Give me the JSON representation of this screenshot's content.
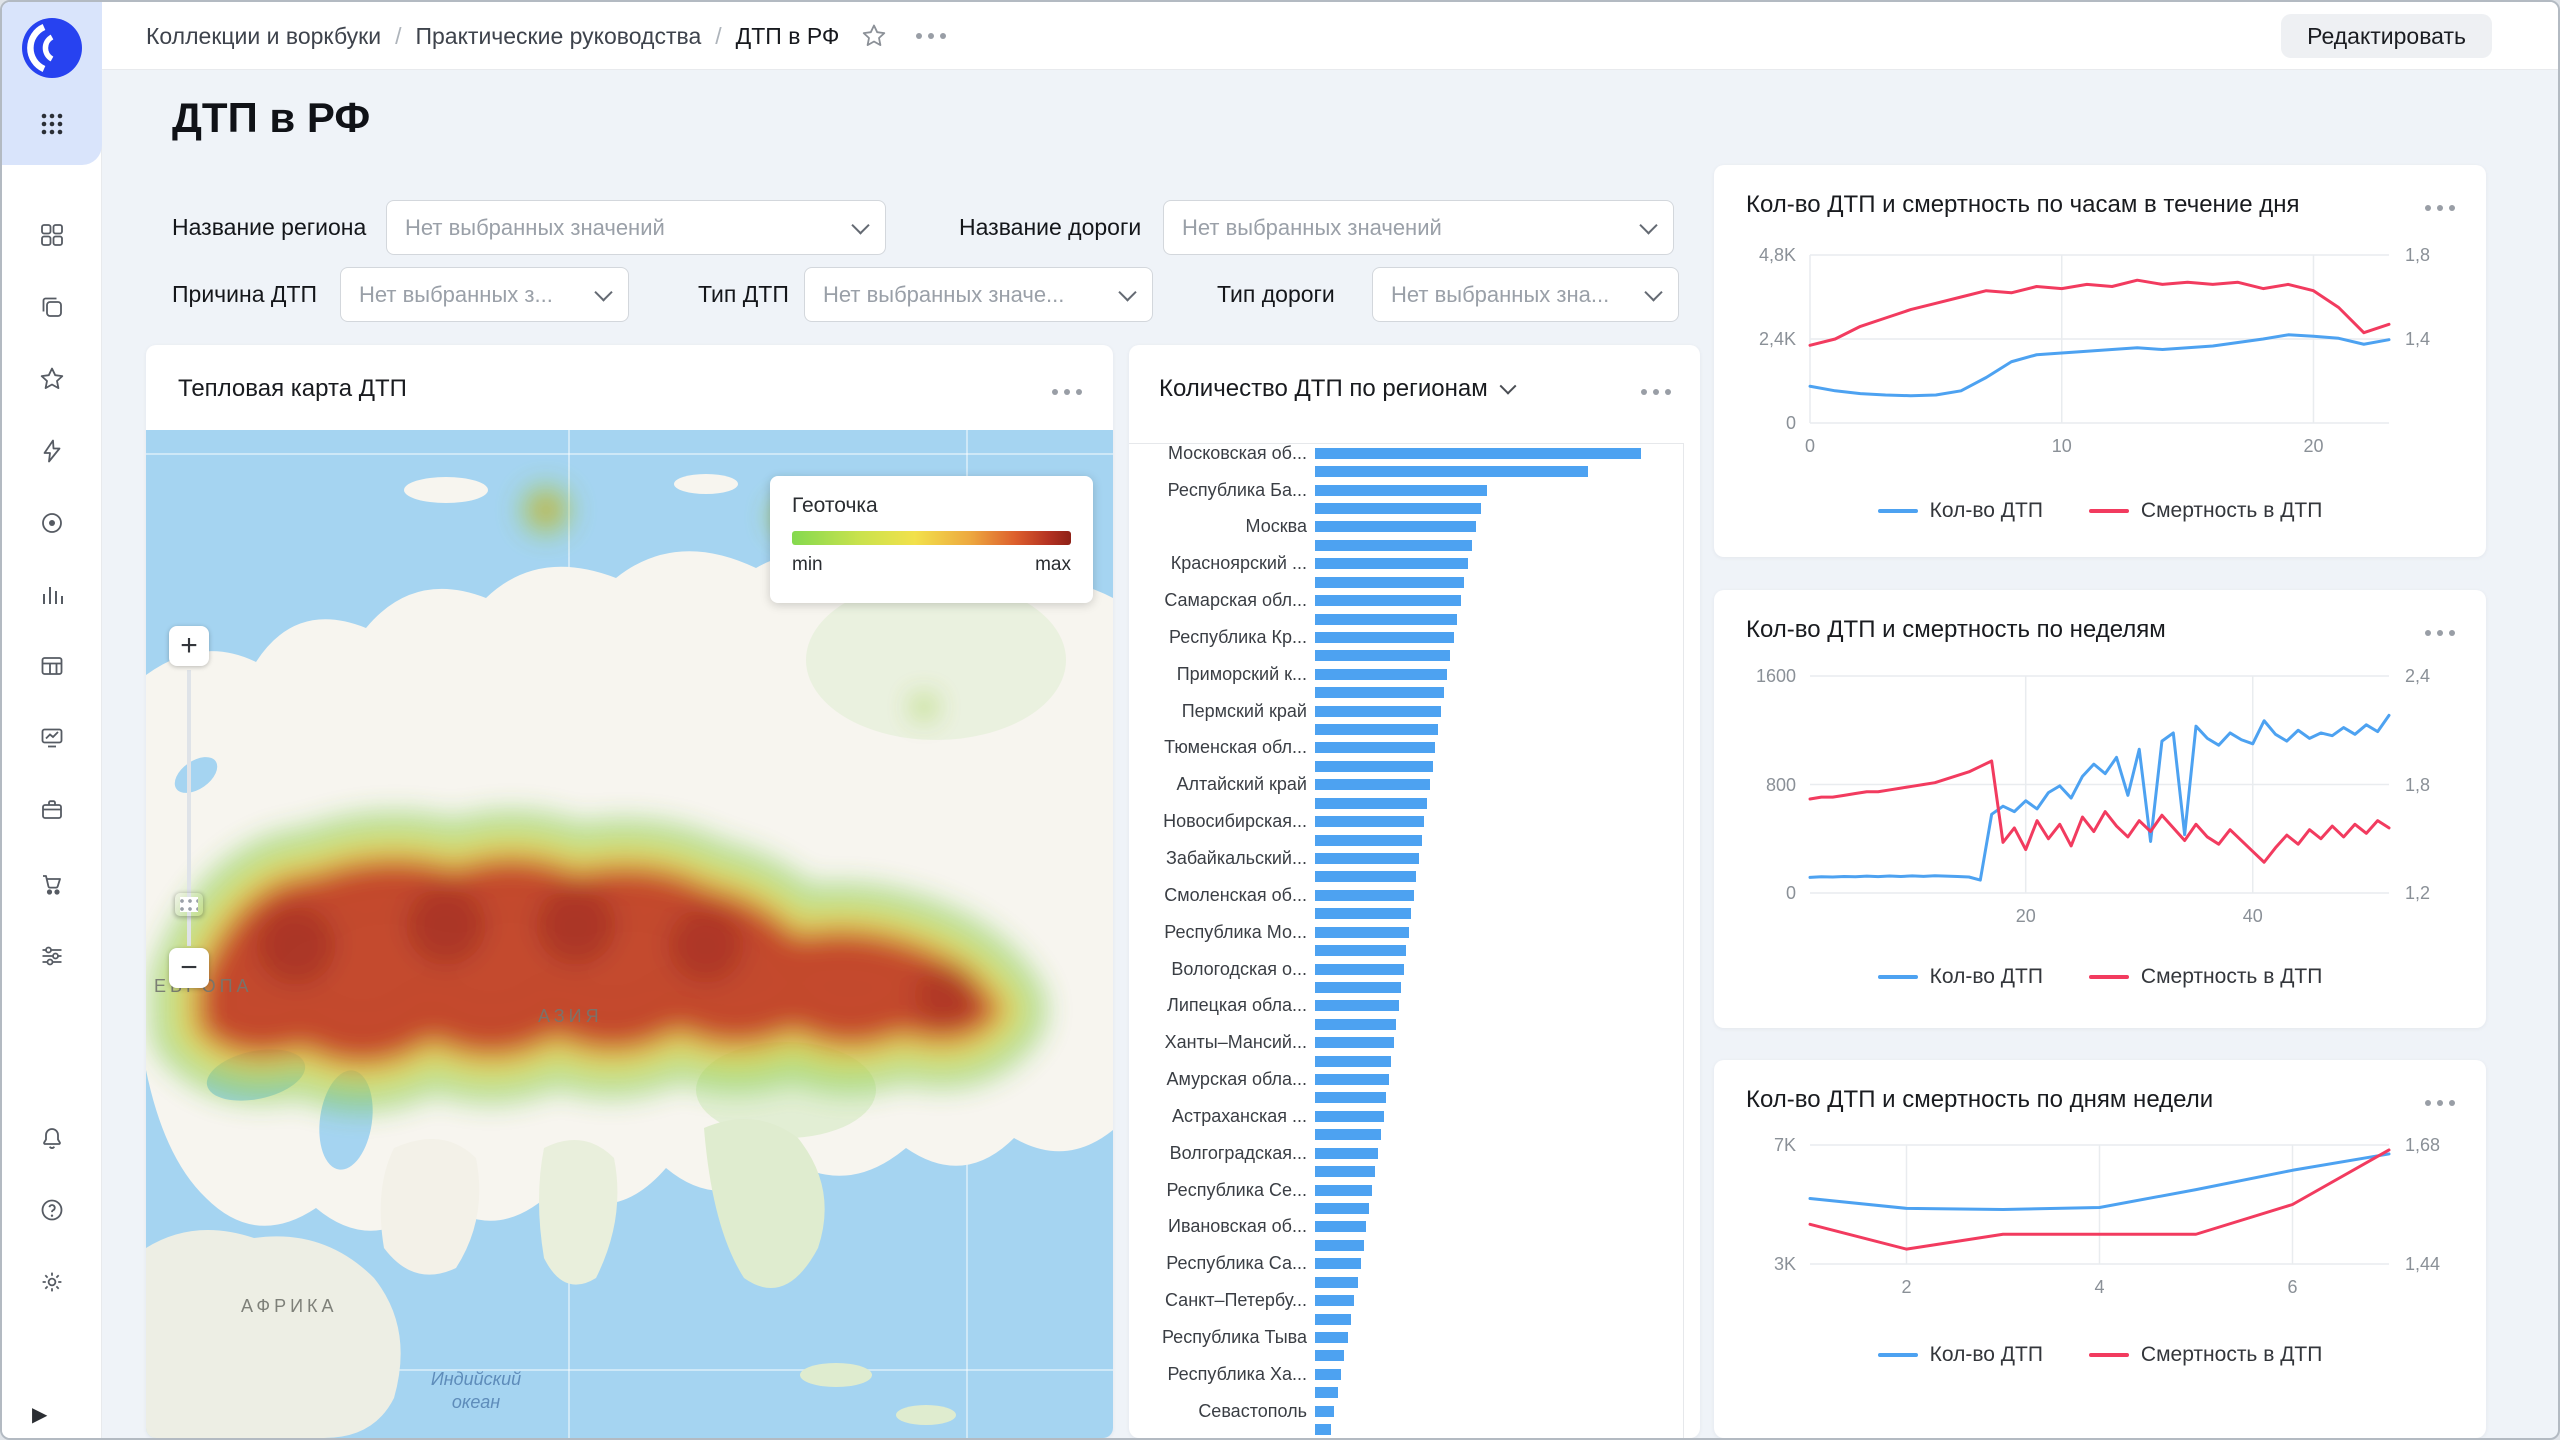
{
  "colors": {
    "blue": "#4DA2F1",
    "red": "#F23B5F"
  },
  "header": {
    "breadcrumbs": [
      "Коллекции и воркбуки",
      "Практические руководства",
      "ДТП в РФ"
    ],
    "edit_button": "Редактировать"
  },
  "page_title": "ДТП в РФ",
  "filters": {
    "region": {
      "label": "Название региона",
      "placeholder": "Нет выбранных значений"
    },
    "road": {
      "label": "Название дороги",
      "placeholder": "Нет выбранных значений"
    },
    "cause": {
      "label": "Причина ДТП",
      "placeholder": "Нет выбранных з..."
    },
    "dtp_type": {
      "label": "Тип ДТП",
      "placeholder": "Нет выбранных значе..."
    },
    "road_type": {
      "label": "Тип дороги",
      "placeholder": "Нет выбранных зна..."
    }
  },
  "heatmap_card": {
    "title": "Тепловая карта ДТП",
    "legend_title": "Геоточка",
    "legend_min": "min",
    "legend_max": "max",
    "zoom_in": "+",
    "zoom_out": "−",
    "labels": {
      "europe": "ЕВРОПА",
      "asia": "АЗИЯ",
      "africa": "АФРИКА",
      "indian_ocean_1": "Индийский",
      "indian_ocean_2": "океан"
    }
  },
  "chart_data": [
    {
      "type": "bar",
      "orientation": "horizontal",
      "title": "Количество ДТП по регионам",
      "bar_color": "#4DA2F1",
      "scale_max": 4400,
      "categories": [
        "Московская об...",
        "",
        "Республика Ба...",
        "",
        "Москва",
        "",
        "Красноярский ...",
        "",
        "Самарская обл...",
        "",
        "Республика Кр...",
        "",
        "Приморский к...",
        "",
        "Пермский край",
        "",
        "Тюменская обл...",
        "",
        "Алтайский край",
        "",
        "Новосибирская...",
        "",
        "Забайкальский...",
        "",
        "Смоленская об...",
        "",
        "Республика Мо...",
        "",
        "Вологодская о...",
        "",
        "Липецкая обла...",
        "",
        "Ханты–Мансий...",
        "",
        "Амурская обла...",
        "",
        "Астраханская ...",
        "",
        "Волгоградская...",
        "",
        "Республика Се...",
        "",
        "Ивановская об...",
        "",
        "Республика Са...",
        "",
        "Санкт–Петербу...",
        "",
        "Республика Тыва",
        "",
        "Республика Ха...",
        "",
        "Севастополь",
        ""
      ],
      "values": [
        3900,
        3270,
        2060,
        1990,
        1930,
        1880,
        1830,
        1785,
        1740,
        1700,
        1660,
        1620,
        1580,
        1545,
        1510,
        1475,
        1440,
        1405,
        1370,
        1340,
        1305,
        1275,
        1240,
        1210,
        1180,
        1150,
        1120,
        1090,
        1060,
        1030,
        1000,
        970,
        940,
        910,
        880,
        850,
        820,
        790,
        755,
        720,
        685,
        650,
        615,
        580,
        545,
        510,
        470,
        430,
        390,
        350,
        310,
        270,
        230,
        190
      ]
    },
    {
      "type": "line",
      "title": "Кол-во ДТП и смертность по часам в течение дня",
      "x_min": 0,
      "x_max": 23,
      "x_step": 1,
      "x_ticks": [
        {
          "value": 0,
          "label": "0"
        },
        {
          "value": 10,
          "label": "10"
        },
        {
          "value": 20,
          "label": "20"
        }
      ],
      "left_axis": {
        "min": 0,
        "max": 4800,
        "ticks": [
          {
            "value": 0,
            "label": "0"
          },
          {
            "value": 2400,
            "label": "2,4K"
          },
          {
            "value": 4800,
            "label": "4,8K"
          }
        ]
      },
      "right_axis": {
        "min": 1.0,
        "max": 1.8,
        "ticks": [
          {
            "value": 1.4,
            "label": "1,4"
          },
          {
            "value": 1.8,
            "label": "1,8"
          }
        ]
      },
      "series": [
        {
          "name": "Кол-во ДТП",
          "color": "#4DA2F1",
          "axis": "left",
          "values": [
            1050,
            920,
            840,
            800,
            780,
            800,
            920,
            1300,
            1750,
            1950,
            2000,
            2050,
            2100,
            2150,
            2100,
            2150,
            2200,
            2300,
            2400,
            2520,
            2480,
            2420,
            2250,
            2380
          ]
        },
        {
          "name": "Смертность в ДТП",
          "color": "#F23B5F",
          "axis": "right",
          "values": [
            1.37,
            1.4,
            1.46,
            1.5,
            1.54,
            1.57,
            1.6,
            1.63,
            1.62,
            1.65,
            1.64,
            1.66,
            1.65,
            1.68,
            1.66,
            1.67,
            1.66,
            1.67,
            1.64,
            1.66,
            1.63,
            1.55,
            1.43,
            1.47
          ]
        }
      ]
    },
    {
      "type": "line",
      "title": "Кол-во ДТП и смертность по неделям",
      "x_min": 1,
      "x_max": 52,
      "x_step": 1,
      "x_ticks": [
        {
          "value": 20,
          "label": "20"
        },
        {
          "value": 40,
          "label": "40"
        }
      ],
      "left_axis": {
        "min": 0,
        "max": 1600,
        "ticks": [
          {
            "value": 0,
            "label": "0"
          },
          {
            "value": 800,
            "label": "800"
          },
          {
            "value": 1600,
            "label": "1600"
          }
        ]
      },
      "right_axis": {
        "min": 1.2,
        "max": 2.4,
        "ticks": [
          {
            "value": 1.2,
            "label": "1,2"
          },
          {
            "value": 1.8,
            "label": "1,8"
          },
          {
            "value": 2.4,
            "label": "2,4"
          }
        ]
      },
      "series": [
        {
          "name": "Кол-во ДТП",
          "color": "#4DA2F1",
          "axis": "left",
          "values": [
            115,
            120,
            118,
            122,
            120,
            124,
            121,
            125,
            122,
            126,
            123,
            127,
            124,
            122,
            118,
            95,
            580,
            640,
            600,
            680,
            620,
            740,
            790,
            700,
            860,
            950,
            880,
            1000,
            720,
            1060,
            380,
            1120,
            1180,
            430,
            1230,
            1140,
            1090,
            1180,
            1130,
            1100,
            1270,
            1170,
            1120,
            1200,
            1140,
            1180,
            1160,
            1220,
            1170,
            1240,
            1190,
            1310
          ]
        },
        {
          "name": "Смертность в ДТП",
          "color": "#F23B5F",
          "axis": "right",
          "values": [
            1.72,
            1.73,
            1.73,
            1.74,
            1.75,
            1.76,
            1.76,
            1.77,
            1.78,
            1.79,
            1.8,
            1.81,
            1.83,
            1.85,
            1.87,
            1.9,
            1.93,
            1.48,
            1.56,
            1.44,
            1.6,
            1.5,
            1.58,
            1.46,
            1.62,
            1.54,
            1.65,
            1.57,
            1.51,
            1.6,
            1.54,
            1.63,
            1.56,
            1.49,
            1.58,
            1.51,
            1.47,
            1.55,
            1.49,
            1.43,
            1.37,
            1.45,
            1.52,
            1.47,
            1.55,
            1.5,
            1.57,
            1.51,
            1.58,
            1.53,
            1.6,
            1.56
          ]
        }
      ]
    },
    {
      "type": "line",
      "title": "Кол-во ДТП и смертность по дням недели",
      "x_min": 1,
      "x_max": 7,
      "x_step": 1,
      "x_ticks": [
        {
          "value": 2,
          "label": "2"
        },
        {
          "value": 4,
          "label": "4"
        },
        {
          "value": 6,
          "label": "6"
        }
      ],
      "left_axis": {
        "min": 3000,
        "max": 7000,
        "ticks": [
          {
            "value": 3000,
            "label": "3K"
          },
          {
            "value": 7000,
            "label": "7K"
          }
        ]
      },
      "right_axis": {
        "min": 1.44,
        "max": 1.68,
        "ticks": [
          {
            "value": 1.44,
            "label": "1,44"
          },
          {
            "value": 1.68,
            "label": "1,68"
          }
        ]
      },
      "series": [
        {
          "name": "Кол-во ДТП",
          "color": "#4DA2F1",
          "axis": "left",
          "values": [
            5200,
            4870,
            4830,
            4900,
            5500,
            6150,
            6700
          ]
        },
        {
          "name": "Смертность в ДТП",
          "color": "#F23B5F",
          "axis": "right",
          "values": [
            1.52,
            1.47,
            1.5,
            1.5,
            1.5,
            1.56,
            1.67
          ]
        }
      ]
    }
  ]
}
